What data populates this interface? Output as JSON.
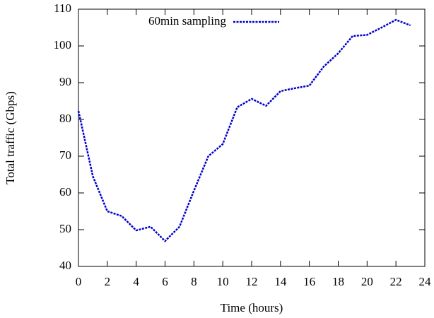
{
  "chart_data": {
    "type": "line",
    "xlabel": "Time (hours)",
    "ylabel": "Total traffic (Gbps)",
    "x": [
      0,
      1,
      2,
      3,
      4,
      5,
      6,
      7,
      8,
      9,
      10,
      11,
      12,
      13,
      14,
      15,
      16,
      17,
      18,
      19,
      20,
      21,
      22,
      23
    ],
    "series": [
      {
        "name": "60min sampling",
        "color": "#0000cc",
        "values": [
          82.3,
          64.5,
          55,
          53.7,
          49.8,
          50.8,
          46.9,
          50.8,
          60.6,
          70,
          73.3,
          83.3,
          85.6,
          83.7,
          87.7,
          88.5,
          89.2,
          94.4,
          98,
          102.7,
          103,
          105,
          107.1,
          105.6
        ]
      }
    ],
    "xlim": [
      0,
      24
    ],
    "ylim": [
      40,
      110
    ],
    "xticks": [
      0,
      2,
      4,
      6,
      8,
      10,
      12,
      14,
      16,
      18,
      20,
      22,
      24
    ],
    "yticks": [
      40,
      50,
      60,
      70,
      80,
      90,
      100,
      110
    ],
    "legend": "top"
  }
}
